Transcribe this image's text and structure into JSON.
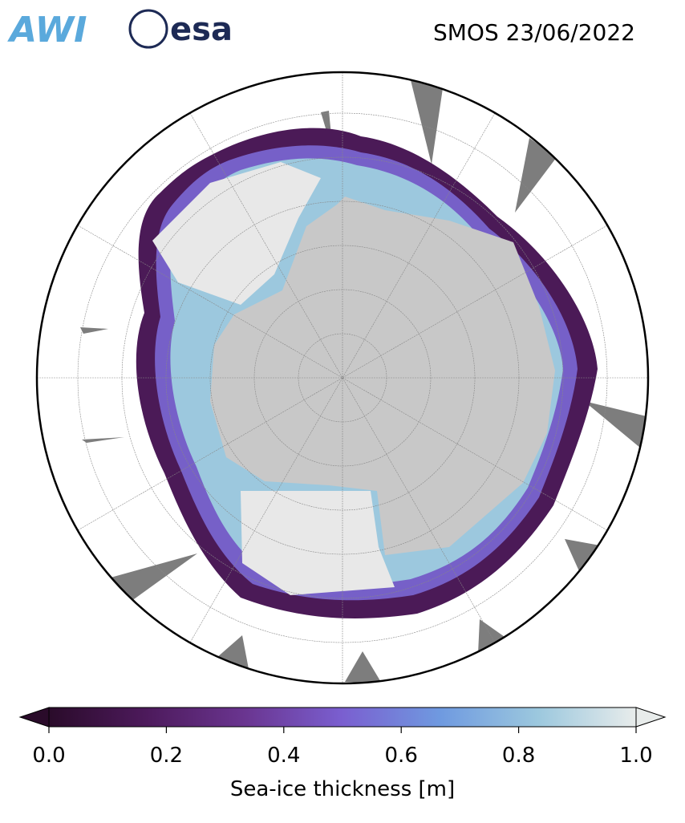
{
  "header": {
    "logos": [
      "AWI",
      "esa"
    ],
    "title": "SMOS 23/06/2022"
  },
  "colorbar": {
    "label": "Sea-ice thickness [m]",
    "lim": [
      0,
      1
    ],
    "ticks": [
      {
        "value": 0,
        "label": "0.0"
      },
      {
        "value": 0.2,
        "label": "0.2"
      },
      {
        "value": 0.4,
        "label": "0.4"
      },
      {
        "value": 0.6,
        "label": "0.6"
      },
      {
        "value": 0.8,
        "label": "0.8"
      },
      {
        "value": 1,
        "label": "1.0"
      }
    ],
    "colors": [
      "#2a0b2a",
      "#4d1a5c",
      "#6a3590",
      "#7a5fd0",
      "#6f9ae0",
      "#9cc8de",
      "#e8eceb"
    ]
  }
}
